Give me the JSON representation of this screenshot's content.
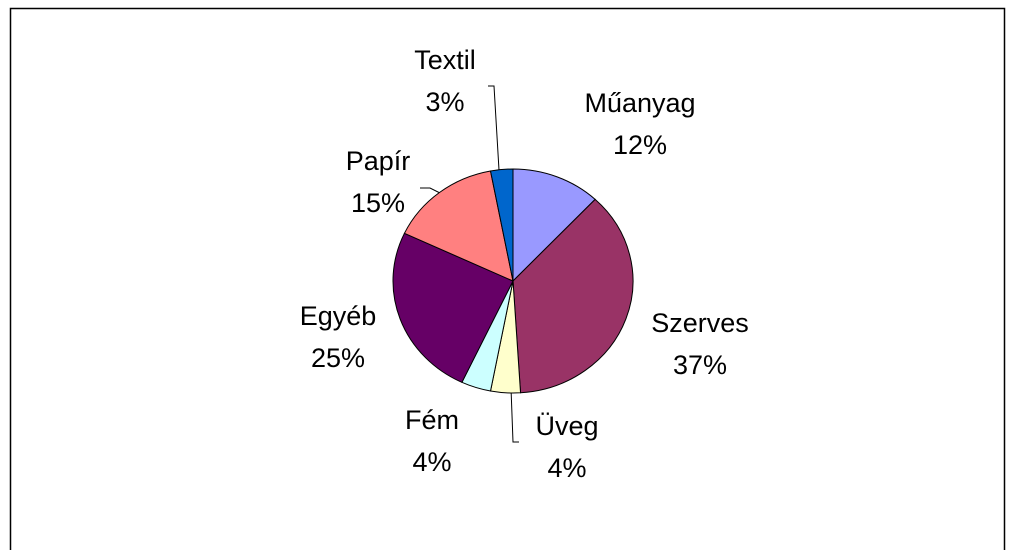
{
  "chart_data": {
    "type": "pie",
    "categories": [
      "Műanyag",
      "Szerves",
      "Üveg",
      "Fém",
      "Egyéb",
      "Papír",
      "Textil"
    ],
    "values": [
      12,
      37,
      4,
      4,
      25,
      15,
      3
    ],
    "value_labels": [
      "12%",
      "37%",
      "4%",
      "4%",
      "25%",
      "15%",
      "3%"
    ],
    "colors": [
      "#9999ff",
      "#993366",
      "#ffffcc",
      "#ccffff",
      "#660066",
      "#ff8080",
      "#0066cc"
    ]
  }
}
